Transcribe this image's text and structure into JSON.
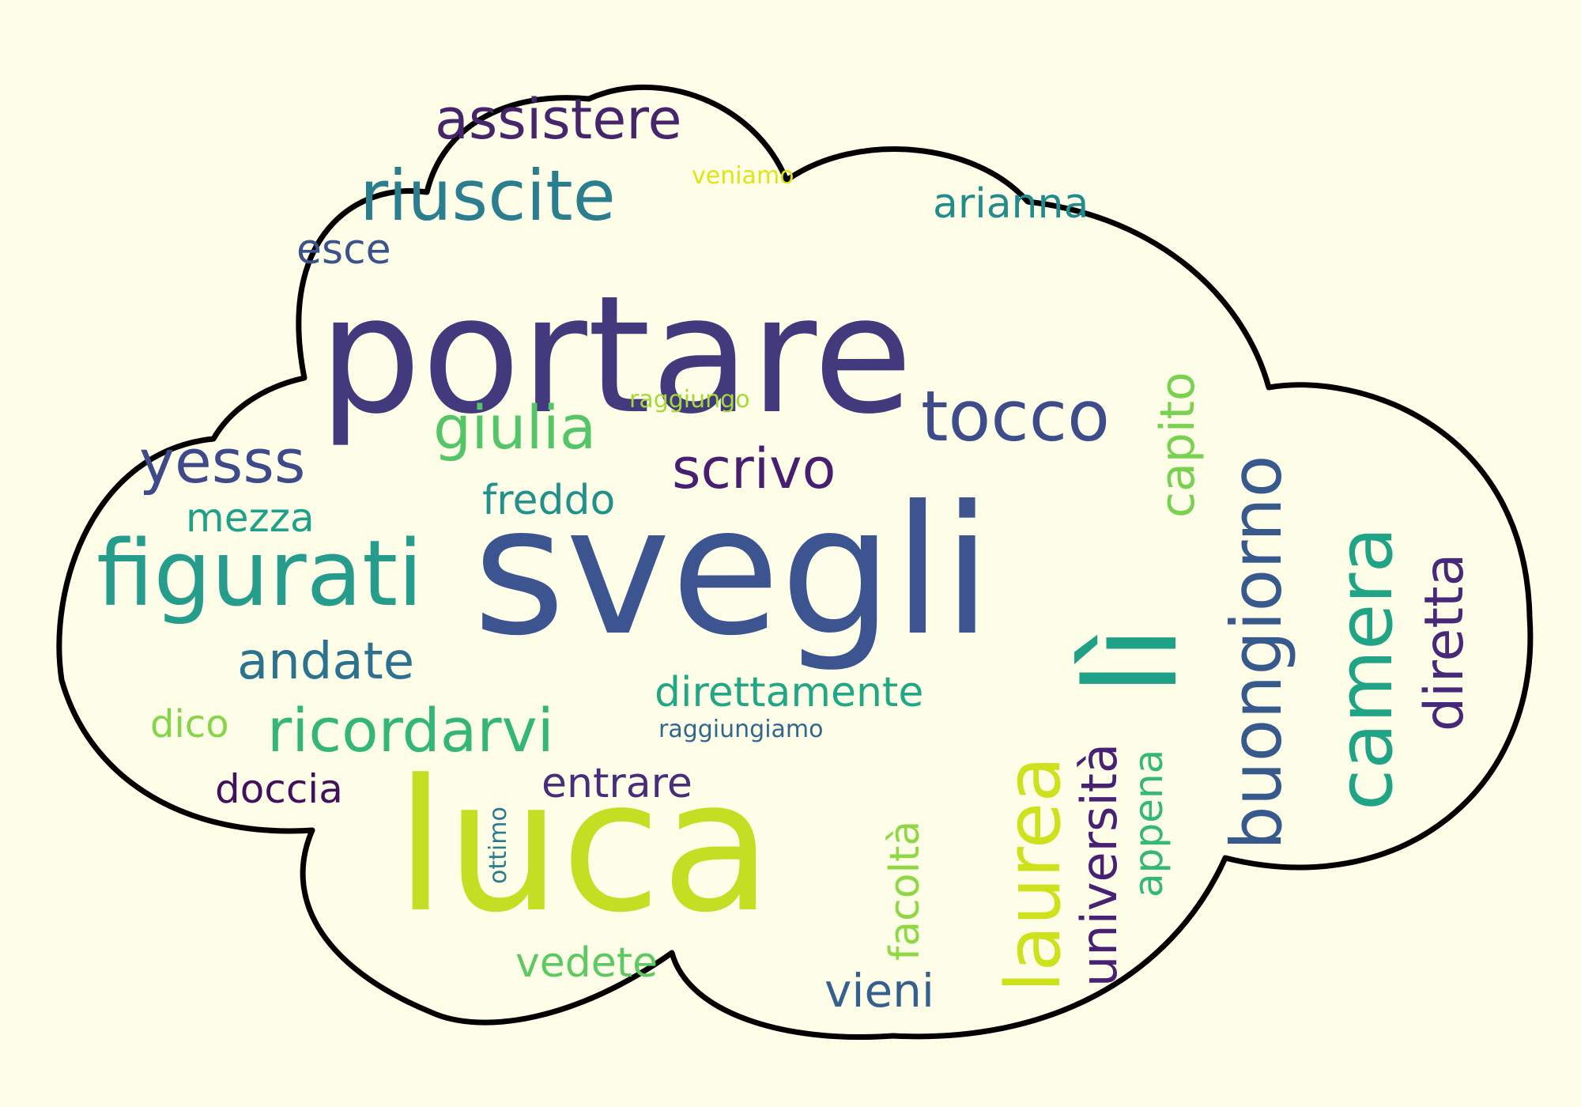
{
  "background_color": "#fefee8",
  "outline_color": "#000000",
  "words": [
    {
      "id": "portare",
      "text": "portare",
      "color": "#433a7d"
    },
    {
      "id": "svegli",
      "text": "svegli",
      "color": "#3c5590"
    },
    {
      "id": "luca",
      "text": "luca",
      "color": "#c2df23"
    },
    {
      "id": "figurati",
      "text": "figurati",
      "color": "#259c8c"
    },
    {
      "id": "assistere",
      "text": "assistere",
      "color": "#46256b"
    },
    {
      "id": "riuscite",
      "text": "riuscite",
      "color": "#2b7e8e"
    },
    {
      "id": "veniamo",
      "text": "veniamo",
      "color": "#dfe318"
    },
    {
      "id": "arianna",
      "text": "arianna",
      "color": "#228c8d"
    },
    {
      "id": "esce",
      "text": "esce",
      "color": "#3b528b"
    },
    {
      "id": "raggiungo",
      "text": "raggiungo",
      "color": "#a3da37"
    },
    {
      "id": "giulia",
      "text": "giulia",
      "color": "#54c568"
    },
    {
      "id": "tocco",
      "text": "tocco",
      "color": "#3e4c8a"
    },
    {
      "id": "yesss",
      "text": "yesss",
      "color": "#3e4a89"
    },
    {
      "id": "scrivo",
      "text": "scrivo",
      "color": "#481f70"
    },
    {
      "id": "freddo",
      "text": "freddo",
      "color": "#21918c"
    },
    {
      "id": "capito",
      "text": "capito",
      "color": "#7ad151"
    },
    {
      "id": "mezza",
      "text": "mezza",
      "color": "#1fa088"
    },
    {
      "id": "buongiorno",
      "text": "buongiorno",
      "color": "#38598c"
    },
    {
      "id": "camera",
      "text": "camera",
      "color": "#20a486"
    },
    {
      "id": "diretta",
      "text": "diretta",
      "color": "#482878"
    },
    {
      "id": "li",
      "text": "lì",
      "color": "#1fa187"
    },
    {
      "id": "andate",
      "text": "andate",
      "color": "#2c728e"
    },
    {
      "id": "direttamente",
      "text": "direttamente",
      "color": "#22a785"
    },
    {
      "id": "dico",
      "text": "dico",
      "color": "#86d549"
    },
    {
      "id": "ricordarvi",
      "text": "ricordarvi",
      "color": "#34b679"
    },
    {
      "id": "raggiungiamo",
      "text": "raggiungiamo",
      "color": "#31668e"
    },
    {
      "id": "doccia",
      "text": "doccia",
      "color": "#440f5c"
    },
    {
      "id": "entrare",
      "text": "entrare",
      "color": "#472d7b"
    },
    {
      "id": "universita",
      "text": "università",
      "color": "#482173"
    },
    {
      "id": "laurea",
      "text": "laurea",
      "color": "#cde11d"
    },
    {
      "id": "appena",
      "text": "appena",
      "color": "#35b779"
    },
    {
      "id": "ottimo",
      "text": "ottimo",
      "color": "#287c8e"
    },
    {
      "id": "facolta",
      "text": "facoltà",
      "color": "#8fd744"
    },
    {
      "id": "vedete",
      "text": "vedete",
      "color": "#5ec962"
    },
    {
      "id": "vieni",
      "text": "vieni",
      "color": "#355f8d"
    }
  ]
}
